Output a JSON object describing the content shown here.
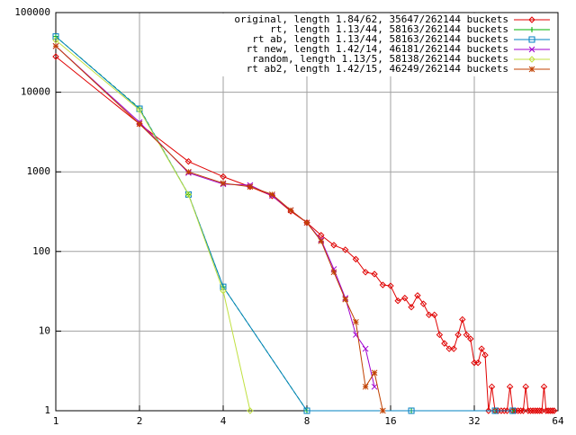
{
  "chart_data": {
    "type": "line",
    "xscale": "log",
    "yscale": "log",
    "grid": true,
    "legend": "top-right",
    "xlim": [
      1,
      64
    ],
    "ylim": [
      1,
      100000
    ],
    "xticks": [
      1,
      2,
      4,
      8,
      16,
      32,
      64
    ],
    "yticks": [
      1,
      10,
      100,
      1000,
      10000,
      100000
    ],
    "series": [
      {
        "name": "original, length 1.84/62, 35647/262144 buckets",
        "color": "#e00000",
        "marker": "diamond",
        "x": [
          1,
          2,
          3,
          4,
          5,
          6,
          7,
          8,
          9,
          10,
          11,
          12,
          13,
          14,
          15,
          16,
          17,
          18,
          19,
          20,
          21,
          22,
          23,
          24,
          25,
          26,
          27,
          28,
          29,
          30,
          31,
          32,
          33,
          34,
          35,
          36,
          37,
          38,
          39,
          40,
          41,
          42,
          43,
          44,
          45,
          46,
          47,
          48,
          49,
          50,
          51,
          52,
          53,
          54,
          55,
          56,
          57,
          58,
          59,
          60,
          61,
          62
        ],
        "values": [
          28000,
          4000,
          1350,
          870,
          650,
          500,
          320,
          230,
          160,
          120,
          105,
          80,
          55,
          52,
          38,
          37,
          24,
          26,
          20,
          28,
          22,
          16,
          16,
          9,
          7,
          6,
          6,
          9,
          14,
          9,
          8,
          4,
          4,
          6,
          5,
          1,
          2,
          1,
          1,
          1,
          1,
          1,
          2,
          1,
          1,
          1,
          1,
          1,
          2,
          1,
          1,
          1,
          1,
          1,
          1,
          1,
          2,
          1,
          1,
          1,
          1,
          1
        ]
      },
      {
        "name": "rt, length 1.13/44, 58163/262144 buckets",
        "color": "#00b000",
        "marker": "plus",
        "x": [
          1,
          2,
          3,
          4,
          8,
          19,
          38,
          44
        ],
        "values": [
          50000,
          6300,
          520,
          36,
          1,
          1,
          1,
          1
        ]
      },
      {
        "name": "rt ab, length 1.13/44, 58163/262144 buckets",
        "color": "#0080c0",
        "marker": "square",
        "x": [
          1,
          2,
          3,
          4,
          8,
          19,
          38,
          44
        ],
        "values": [
          50000,
          6200,
          520,
          36,
          1,
          1,
          1,
          1
        ]
      },
      {
        "name": "rt new, length 1.42/14, 46181/262144 buckets",
        "color": "#a000d0",
        "marker": "cross",
        "x": [
          1,
          2,
          3,
          4,
          5,
          6,
          7,
          8,
          9,
          10,
          11,
          12,
          13,
          14
        ],
        "values": [
          38000,
          4200,
          970,
          700,
          680,
          500,
          330,
          230,
          140,
          60,
          26,
          9,
          6,
          2
        ]
      },
      {
        "name": "random, length 1.13/5, 58138/262144 buckets",
        "color": "#c0e040",
        "marker": "diamond",
        "x": [
          1,
          2,
          3,
          4,
          5
        ],
        "values": [
          45000,
          6000,
          520,
          32,
          1
        ]
      },
      {
        "name": "rt ab2, length 1.42/15, 46249/262144 buckets",
        "color": "#c04000",
        "marker": "star",
        "x": [
          1,
          2,
          3,
          4,
          5,
          6,
          7,
          8,
          9,
          10,
          11,
          12,
          13,
          14,
          15
        ],
        "values": [
          38000,
          4000,
          1000,
          720,
          650,
          520,
          330,
          230,
          135,
          55,
          25,
          13,
          2,
          3,
          1
        ]
      }
    ]
  }
}
